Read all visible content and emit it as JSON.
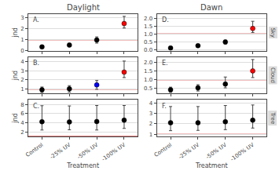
{
  "chart_data": [
    {
      "type": "scatter",
      "title": "Daylight",
      "ylabel": "jnd",
      "annotations": [
        "A."
      ],
      "categories": [
        "Control",
        "-25% UV",
        "-50% UV",
        "-100% UV"
      ],
      "values": [
        0.35,
        0.52,
        0.97,
        2.45
      ],
      "error_low": [
        0.12,
        0.15,
        0.28,
        0.4
      ],
      "error_high": [
        0.12,
        0.15,
        0.28,
        0.65
      ],
      "colors": [
        "black",
        "black",
        "black",
        "red"
      ],
      "hline": {
        "value": 1.0,
        "color": "#cc0000"
      },
      "ylim": [
        0,
        3.3
      ],
      "yticks": [
        0,
        1,
        2,
        3
      ],
      "grid": true,
      "tick_labels": "y"
    },
    {
      "type": "scatter",
      "title": "Dawn",
      "annotations": [
        "D.",
        "Sky"
      ],
      "categories": [
        "Control",
        "-25% UV",
        "-50% UV",
        "-100% UV"
      ],
      "values": [
        0.13,
        0.27,
        0.5,
        1.35
      ],
      "error_low": [
        0.04,
        0.07,
        0.12,
        0.25
      ],
      "error_high": [
        0.04,
        0.07,
        0.12,
        0.45
      ],
      "colors": [
        "black",
        "black",
        "black",
        "red"
      ],
      "hline": {
        "value": 1.0,
        "color": "#cc0000"
      },
      "ylim": [
        -0.05,
        2.25
      ],
      "yticks": [
        {
          "value": 0.0,
          "label": "0.0"
        },
        0.5,
        {
          "value": 1.0,
          "label": "1.0"
        },
        1.5,
        {
          "value": 2.0,
          "label": "2.0"
        }
      ],
      "grid": true,
      "tick_labels": "y"
    },
    {
      "type": "scatter",
      "ylabel": "jnd",
      "annotations": [
        "B."
      ],
      "categories": [
        "Control",
        "-25% UV",
        "-50% UV",
        "-100% UV"
      ],
      "values": [
        0.92,
        1.02,
        1.45,
        2.85
      ],
      "error_low": [
        0.3,
        0.35,
        0.48,
        0.6
      ],
      "error_high": [
        0.3,
        0.35,
        0.48,
        1.2
      ],
      "colors": [
        "black",
        "black",
        "blue",
        "red"
      ],
      "hline": {
        "value": 1.0,
        "color": "#cc0000"
      },
      "ylim": [
        0.5,
        4.5
      ],
      "yticks": [
        1,
        2,
        3,
        4
      ],
      "grid": true,
      "tick_labels": "y"
    },
    {
      "type": "scatter",
      "annotations": [
        "E.",
        "Cloud"
      ],
      "categories": [
        "Control",
        "-25% UV",
        "-50% UV",
        "-100% UV"
      ],
      "values": [
        0.42,
        0.53,
        0.75,
        1.5
      ],
      "error_low": [
        0.15,
        0.18,
        0.22,
        0.38
      ],
      "error_high": [
        0.15,
        0.18,
        0.4,
        0.65
      ],
      "colors": [
        "black",
        "black",
        "black",
        "red"
      ],
      "hline": {
        "value": 1.0,
        "color": "#cc0000"
      },
      "ylim": [
        0.2,
        2.3
      ],
      "yticks": [
        0.5,
        {
          "value": 1.0,
          "label": "1.0"
        },
        1.5,
        {
          "value": 2.0,
          "label": "2.0"
        }
      ],
      "grid": true,
      "tick_labels": "y"
    },
    {
      "type": "scatter",
      "ylabel": "jnd",
      "xlabel": "Treatment",
      "annotations": [
        "C."
      ],
      "categories": [
        "Control",
        "-25% UV",
        "-50% UV",
        "-100% UV"
      ],
      "values": [
        4.2,
        4.15,
        4.25,
        4.55
      ],
      "error_low": [
        1.8,
        1.7,
        1.85,
        1.8
      ],
      "error_high": [
        3.5,
        3.5,
        3.5,
        3.2
      ],
      "colors": [
        "black",
        "black",
        "black",
        "black"
      ],
      "hline": {
        "value": 1.0,
        "color": "#cc0000"
      },
      "ylim": [
        1.0,
        9.0
      ],
      "yticks": [
        2,
        4,
        6,
        8
      ],
      "grid": true
    },
    {
      "type": "scatter",
      "xlabel": "Treatment",
      "annotations": [
        "F.",
        "Tree"
      ],
      "categories": [
        "Control",
        "-25% UV",
        "-50% UV",
        "-100% UV"
      ],
      "values": [
        2.1,
        2.1,
        2.2,
        2.35
      ],
      "error_low": [
        0.75,
        0.72,
        0.75,
        0.75
      ],
      "error_high": [
        1.55,
        1.55,
        1.55,
        1.45
      ],
      "colors": [
        "black",
        "black",
        "black",
        "black"
      ],
      "hline": {
        "value": 1.0,
        "color": "#cc0000"
      },
      "ylim": [
        0.8,
        4.3
      ],
      "yticks": [
        1,
        2,
        3,
        4
      ],
      "grid": true
    }
  ]
}
